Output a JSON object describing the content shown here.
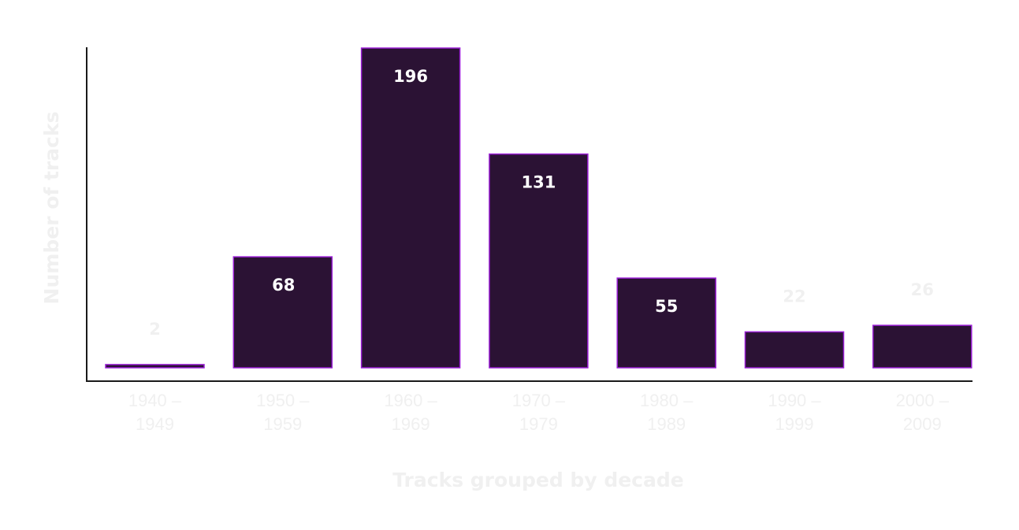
{
  "chart_data": {
    "type": "bar",
    "categories": [
      [
        "1940 –",
        "1949"
      ],
      [
        "1950 –",
        "1959"
      ],
      [
        "1960 –",
        "1969"
      ],
      [
        "1970 –",
        "1979"
      ],
      [
        "1980 –",
        "1989"
      ],
      [
        "1990 –",
        "1999"
      ],
      [
        "2000 –",
        "2009"
      ]
    ],
    "values": [
      2,
      68,
      196,
      131,
      55,
      22,
      26
    ],
    "xlabel": "Tracks grouped by decade",
    "ylabel": "Number of tracks",
    "ylim": [
      0,
      196
    ],
    "grid": false,
    "bar_color": "#2b1234",
    "bar_outline_color": "#9b1fd6",
    "axis_color": "#1a1a1a",
    "muted_text_color": "#f0f0f0"
  }
}
